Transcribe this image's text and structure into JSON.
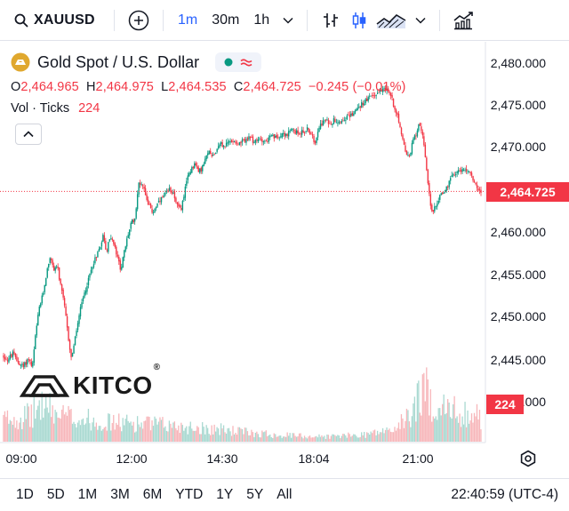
{
  "toolbar": {
    "symbol": "XAUUSD",
    "intervals": [
      "1m",
      "30m",
      "1h"
    ],
    "active_interval": "1m"
  },
  "legend": {
    "title": "Gold Spot / U.S. Dollar",
    "open_label": "O",
    "open": "2,464.965",
    "high_label": "H",
    "high": "2,464.975",
    "low_label": "L",
    "low": "2,464.535",
    "close_label": "C",
    "close": "2,464.725",
    "change": "−0.245 (−0.01%)",
    "volume_label": "Vol · Ticks",
    "volume": "224"
  },
  "price_scale": {
    "labels": [
      "2,480.000",
      "2,475.000",
      "2,470.000",
      "2,460.000",
      "2,455.000",
      "2,450.000",
      "2,445.000",
      "2,440.000"
    ],
    "last_price": "2,464.725",
    "last_volume": "224"
  },
  "time_axis": [
    "09:00",
    "12:00",
    "14:30",
    "18:04",
    "21:00"
  ],
  "ranges": [
    "1D",
    "5D",
    "1M",
    "3M",
    "6M",
    "YTD",
    "1Y",
    "5Y",
    "All"
  ],
  "clock": "22:40:59 (UTC-4)",
  "logo_text": "KITCO",
  "colors": {
    "up": "#089981",
    "down": "#f23645",
    "accent": "#2962ff",
    "vol_up": "#a9d9d1",
    "vol_down": "#f7b6ba"
  },
  "chart_data": {
    "type": "candlestick",
    "title": "Gold Spot / U.S. Dollar",
    "interval": "1m",
    "ylim": [
      2441,
      2482
    ],
    "y_ticks": [
      2480,
      2475,
      2470,
      2465,
      2460,
      2455,
      2450,
      2445,
      2440
    ],
    "x_ticks": [
      "09:00",
      "12:00",
      "14:30",
      "18:04",
      "21:00"
    ],
    "last_price": 2464.725,
    "price_path": [
      [
        0,
        2445.3
      ],
      [
        6,
        2444.8
      ],
      [
        12,
        2445.5
      ],
      [
        18,
        2444.5
      ],
      [
        24,
        2444.0
      ],
      [
        30,
        2445.0
      ],
      [
        34,
        2443.8
      ],
      [
        38,
        2448.0
      ],
      [
        42,
        2451.0
      ],
      [
        46,
        2452.5
      ],
      [
        50,
        2455.0
      ],
      [
        54,
        2457.0
      ],
      [
        58,
        2455.5
      ],
      [
        62,
        2456.0
      ],
      [
        66,
        2453.5
      ],
      [
        70,
        2451.5
      ],
      [
        74,
        2448.0
      ],
      [
        78,
        2445.0
      ],
      [
        82,
        2447.0
      ],
      [
        86,
        2449.5
      ],
      [
        90,
        2451.5
      ],
      [
        94,
        2453.0
      ],
      [
        98,
        2454.5
      ],
      [
        102,
        2456.0
      ],
      [
        106,
        2457.0
      ],
      [
        110,
        2458.0
      ],
      [
        114,
        2459.5
      ],
      [
        118,
        2457.5
      ],
      [
        122,
        2459.5
      ],
      [
        126,
        2458.5
      ],
      [
        130,
        2457.0
      ],
      [
        134,
        2455.5
      ],
      [
        138,
        2457.5
      ],
      [
        142,
        2459.5
      ],
      [
        146,
        2461.0
      ],
      [
        150,
        2461.5
      ],
      [
        154,
        2465.5
      ],
      [
        158,
        2465.8
      ],
      [
        162,
        2464.5
      ],
      [
        166,
        2463.0
      ],
      [
        170,
        2462.2
      ],
      [
        174,
        2463.0
      ],
      [
        178,
        2463.5
      ],
      [
        182,
        2464.0
      ],
      [
        186,
        2464.5
      ],
      [
        190,
        2465.0
      ],
      [
        194,
        2464.5
      ],
      [
        198,
        2463.0
      ],
      [
        202,
        2462.5
      ],
      [
        206,
        2464.5
      ],
      [
        210,
        2466.5
      ],
      [
        214,
        2467.5
      ],
      [
        218,
        2468.0
      ],
      [
        222,
        2467.0
      ],
      [
        226,
        2467.5
      ],
      [
        230,
        2468.5
      ],
      [
        234,
        2469.5
      ],
      [
        238,
        2469.0
      ],
      [
        242,
        2469.5
      ],
      [
        246,
        2470.5
      ],
      [
        250,
        2470.0
      ],
      [
        256,
        2470.5
      ],
      [
        262,
        2470.8
      ],
      [
        268,
        2470.3
      ],
      [
        274,
        2470.8
      ],
      [
        280,
        2471.0
      ],
      [
        286,
        2470.5
      ],
      [
        292,
        2471.0
      ],
      [
        298,
        2470.6
      ],
      [
        304,
        2471.2
      ],
      [
        310,
        2471.0
      ],
      [
        316,
        2471.6
      ],
      [
        322,
        2471.4
      ],
      [
        328,
        2472.0
      ],
      [
        334,
        2471.6
      ],
      [
        340,
        2471.8
      ],
      [
        346,
        2472.1
      ],
      [
        350,
        2471.2
      ],
      [
        354,
        2470.6
      ],
      [
        358,
        2472.5
      ],
      [
        362,
        2472.8
      ],
      [
        366,
        2473.1
      ],
      [
        370,
        2472.8
      ],
      [
        376,
        2473.2
      ],
      [
        382,
        2473.0
      ],
      [
        388,
        2473.4
      ],
      [
        394,
        2473.7
      ],
      [
        400,
        2474.3
      ],
      [
        406,
        2475.0
      ],
      [
        412,
        2475.5
      ],
      [
        418,
        2476.0
      ],
      [
        424,
        2476.3
      ],
      [
        428,
        2476.7
      ],
      [
        432,
        2477.2
      ],
      [
        436,
        2476.5
      ],
      [
        440,
        2476.0
      ],
      [
        444,
        2474.5
      ],
      [
        448,
        2473.5
      ],
      [
        452,
        2471.0
      ],
      [
        456,
        2469.5
      ],
      [
        460,
        2468.5
      ],
      [
        464,
        2470.5
      ],
      [
        468,
        2471.5
      ],
      [
        472,
        2473.0
      ],
      [
        476,
        2471.0
      ],
      [
        480,
        2467.0
      ],
      [
        484,
        2463.5
      ],
      [
        487,
        2462.0
      ],
      [
        490,
        2463.0
      ],
      [
        494,
        2464.0
      ],
      [
        498,
        2464.5
      ],
      [
        502,
        2465.0
      ],
      [
        506,
        2465.8
      ],
      [
        510,
        2466.8
      ],
      [
        514,
        2467.0
      ],
      [
        518,
        2467.3
      ],
      [
        522,
        2467.0
      ],
      [
        526,
        2467.5
      ],
      [
        530,
        2466.5
      ],
      [
        534,
        2466.0
      ],
      [
        538,
        2465.0
      ],
      [
        541,
        2464.7
      ]
    ],
    "volume_profile": [
      [
        0,
        35
      ],
      [
        30,
        40
      ],
      [
        45,
        60
      ],
      [
        60,
        42
      ],
      [
        90,
        35
      ],
      [
        120,
        30
      ],
      [
        160,
        28
      ],
      [
        200,
        24
      ],
      [
        240,
        20
      ],
      [
        280,
        14
      ],
      [
        320,
        10
      ],
      [
        360,
        8
      ],
      [
        400,
        10
      ],
      [
        440,
        18
      ],
      [
        460,
        40
      ],
      [
        475,
        85
      ],
      [
        485,
        60
      ],
      [
        500,
        50
      ],
      [
        520,
        45
      ],
      [
        541,
        38
      ]
    ]
  }
}
